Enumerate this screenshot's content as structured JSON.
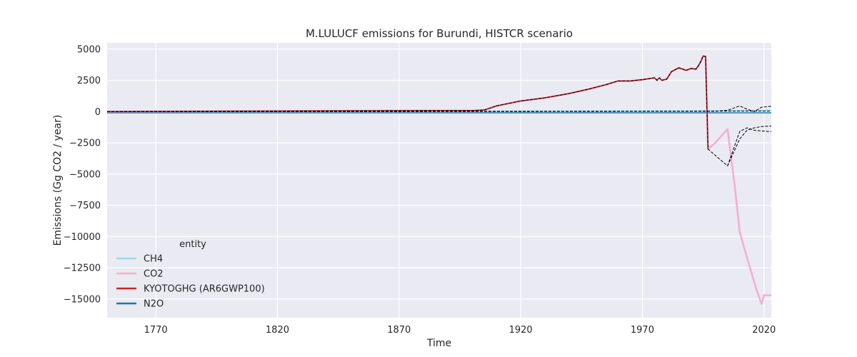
{
  "chart_data": {
    "type": "line",
    "title": "M.LULUCF emissions for Burundi, HISTCR scenario",
    "xlabel": "Time",
    "ylabel": "Emissions (Gg CO2 / year)",
    "xlim": [
      1750,
      2023
    ],
    "ylim": [
      -16500,
      5500
    ],
    "xticks": [
      1770,
      1820,
      1870,
      1920,
      1970,
      2020
    ],
    "yticks": [
      5000,
      2500,
      0,
      -2500,
      -5000,
      -7500,
      -10000,
      -12500,
      -15000
    ],
    "ytick_labels": [
      "5000",
      "2500",
      "0",
      "−2500",
      "−5000",
      "−7500",
      "−10000",
      "−12500",
      "−15000"
    ],
    "grid": true,
    "legend": {
      "title": "entity",
      "position": "lower-left"
    },
    "colors": {
      "CH4": "#9dd9e5",
      "CO2": "#f5aed0",
      "KYOTOGHG (AR6GWP100)": "#c62828",
      "N2O": "#1f77b4",
      "background": "#eaeaf2"
    },
    "series": [
      {
        "name": "CH4",
        "color": "#9dd9e5",
        "x": [
          1750,
          1800,
          1850,
          1900,
          1950,
          1990,
          2000,
          2010,
          2020,
          2023
        ],
        "y": [
          0,
          5,
          10,
          15,
          25,
          40,
          50,
          70,
          80,
          80
        ]
      },
      {
        "name": "CO2",
        "color": "#f5aed0",
        "x": [
          1750,
          1800,
          1850,
          1880,
          1900,
          1905,
          1910,
          1920,
          1930,
          1940,
          1948,
          1950,
          1955,
          1960,
          1965,
          1970,
          1975,
          1976,
          1977,
          1978,
          1980,
          1982,
          1985,
          1988,
          1990,
          1992,
          1993,
          1994,
          1995,
          1996,
          1997,
          2000,
          2005,
          2008,
          2010,
          2012,
          2015,
          2017,
          2019,
          2020,
          2023
        ],
        "y": [
          0,
          30,
          60,
          80,
          80,
          120,
          450,
          850,
          1100,
          1450,
          1800,
          1900,
          2150,
          2450,
          2450,
          2550,
          2700,
          2500,
          2700,
          2500,
          2600,
          3200,
          3500,
          3300,
          3450,
          3400,
          3650,
          4000,
          4450,
          4400,
          -3000,
          -2500,
          -1400,
          -6000,
          -9600,
          -11000,
          -13000,
          -14300,
          -15400,
          -14700,
          -14700
        ]
      },
      {
        "name": "KYOTOGHG (AR6GWP100)",
        "color": "#c62828",
        "x": [
          1750,
          1800,
          1850,
          1880,
          1900,
          1905,
          1910,
          1920,
          1930,
          1940,
          1948,
          1950,
          1955,
          1960,
          1965,
          1970,
          1975,
          1976,
          1977,
          1978,
          1980,
          1982,
          1985,
          1988,
          1990,
          1992,
          1993,
          1994,
          1995,
          1996,
          1997
        ],
        "y": [
          0,
          30,
          60,
          80,
          80,
          120,
          450,
          850,
          1100,
          1450,
          1800,
          1900,
          2150,
          2450,
          2450,
          2550,
          2700,
          2500,
          2700,
          2500,
          2600,
          3200,
          3500,
          3300,
          3450,
          3400,
          3650,
          4000,
          4450,
          4400,
          -3000
        ]
      },
      {
        "name": "N2O",
        "color": "#1f77b4",
        "x": [
          1750,
          2023
        ],
        "y": [
          -100,
          -100
        ]
      }
    ],
    "dashed_overlays": [
      {
        "x": [
          1750,
          1800,
          1850,
          1880,
          1900,
          1905,
          1910,
          1920,
          1930,
          1940,
          1948,
          1950,
          1955,
          1960,
          1965,
          1970,
          1975,
          1976,
          1977,
          1978,
          1980,
          1982,
          1985,
          1988,
          1990,
          1992,
          1993,
          1994,
          1995,
          1996,
          1997,
          2005,
          2010,
          2013,
          2016,
          2019,
          2023
        ],
        "y": [
          0,
          30,
          60,
          80,
          80,
          120,
          450,
          850,
          1100,
          1450,
          1800,
          1900,
          2150,
          2450,
          2450,
          2550,
          2700,
          2500,
          2700,
          2500,
          2600,
          3200,
          3500,
          3300,
          3450,
          3400,
          3650,
          4000,
          4450,
          4400,
          -3000,
          -4350,
          -2200,
          -1500,
          -1300,
          -1200,
          -1150
        ]
      },
      {
        "x": [
          2005,
          2010,
          2013,
          2016,
          2019,
          2023
        ],
        "y": [
          -4350,
          -1600,
          -1300,
          -1500,
          -1550,
          -1600
        ]
      },
      {
        "x": [
          1750,
          1900,
          2000,
          2005,
          2010,
          2013,
          2016,
          2019,
          2023
        ],
        "y": [
          -10,
          0,
          20,
          100,
          450,
          200,
          0,
          350,
          420
        ]
      },
      {
        "x": [
          1750,
          2023
        ],
        "y": [
          0,
          40
        ]
      }
    ]
  }
}
